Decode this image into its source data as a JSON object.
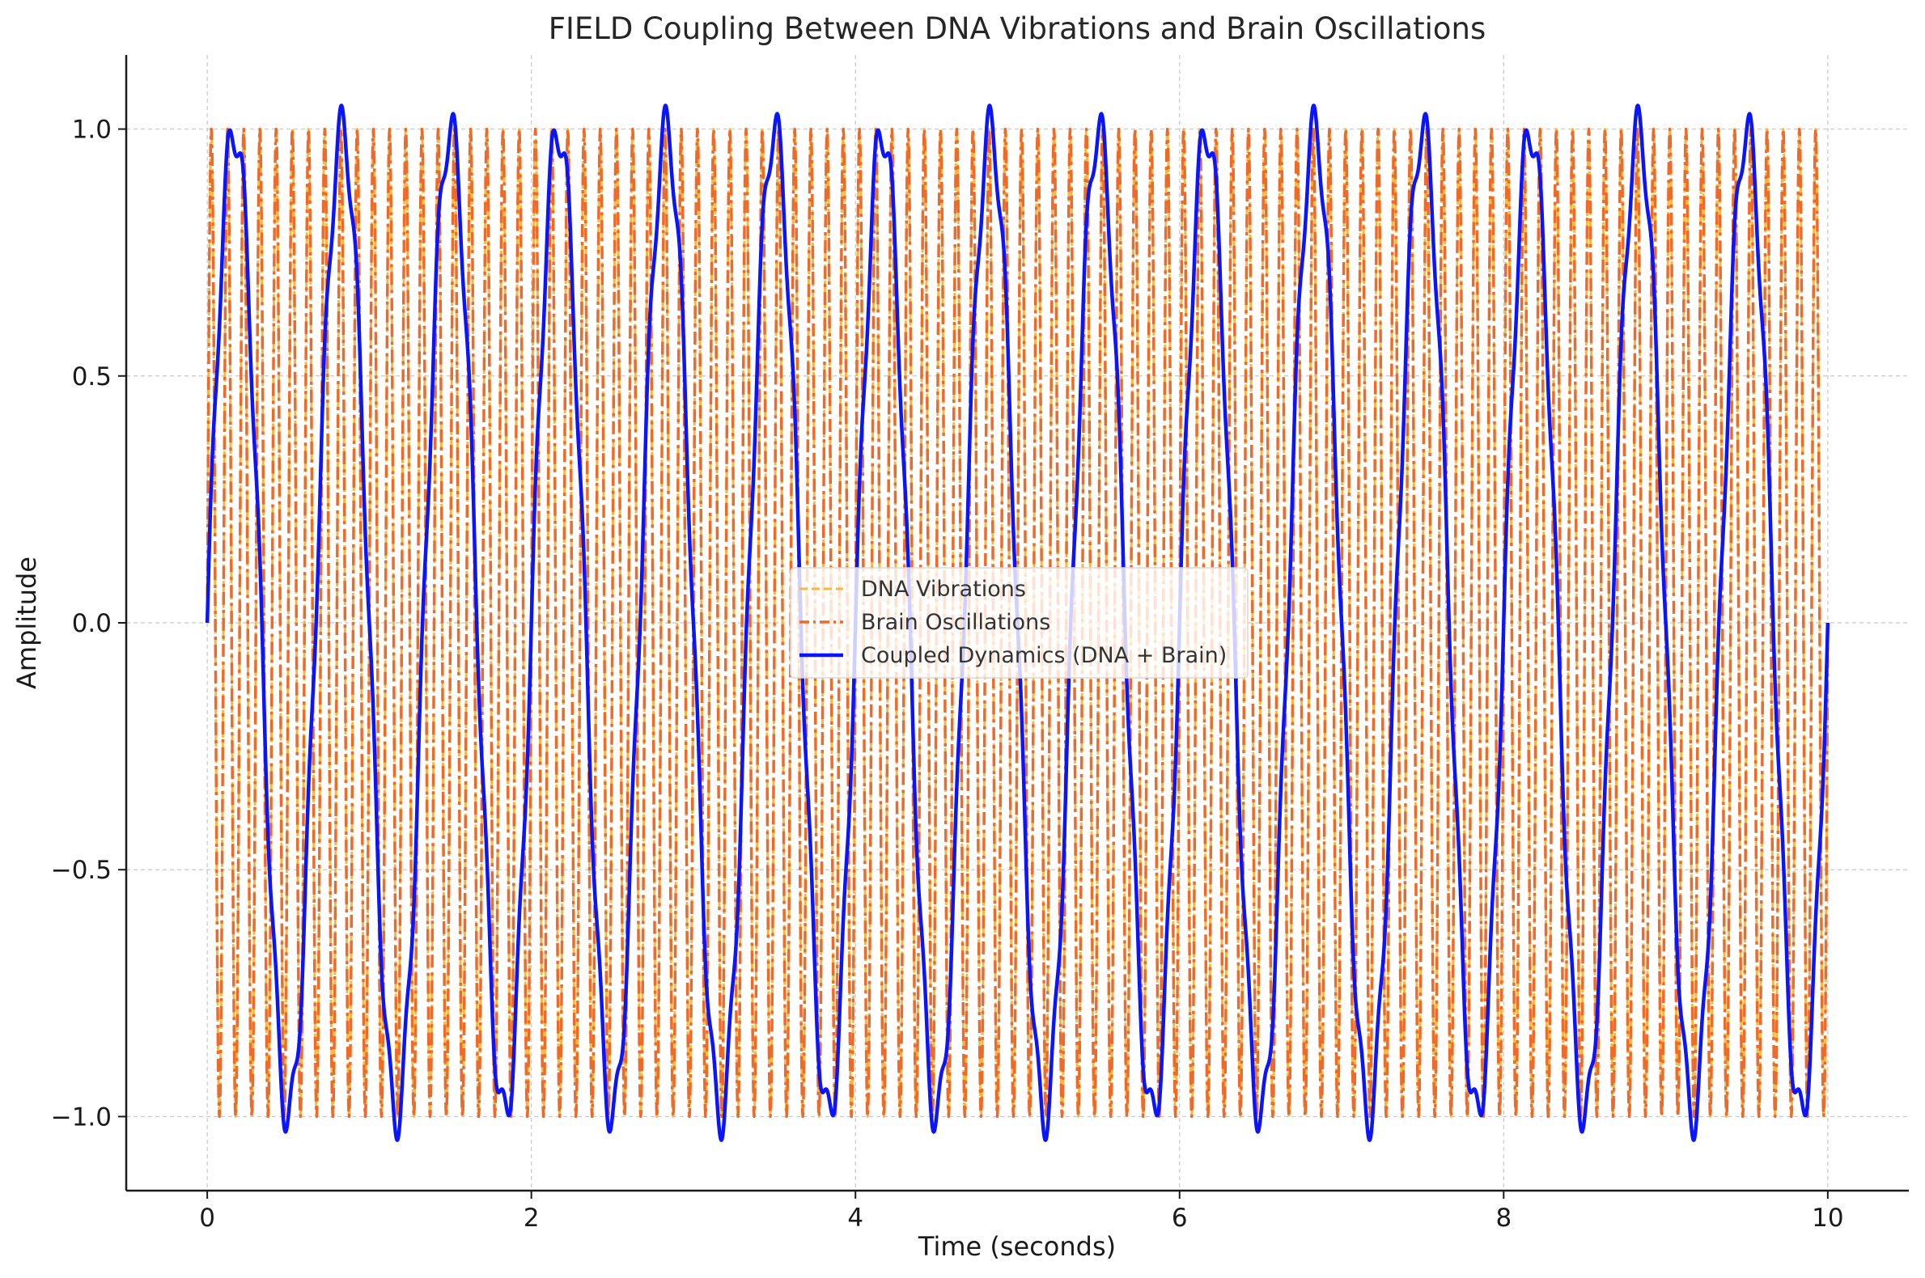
{
  "chart_data": {
    "type": "line",
    "title": "FIELD Coupling Between DNA Vibrations and Brain Oscillations",
    "xlabel": "Time (seconds)",
    "ylabel": "Amplitude",
    "xlim": [
      -0.5,
      10.5
    ],
    "ylim": [
      -1.15,
      1.15
    ],
    "xticks": [
      0,
      2,
      4,
      6,
      8,
      10
    ],
    "xtick_labels": [
      "0",
      "2",
      "4",
      "6",
      "8",
      "10"
    ],
    "yticks": [
      -1.0,
      -0.5,
      0.0,
      0.5,
      1.0
    ],
    "ytick_labels": [
      "−1.0",
      "−0.5",
      "0.0",
      "0.5",
      "1.0"
    ],
    "grid": true,
    "legend_position": "center",
    "series": [
      {
        "name": "DNA Vibrations",
        "color": "#f5b942",
        "linestyle": "dashed",
        "function": "sin(2*pi*10*t)",
        "x_range": [
          0,
          10
        ],
        "amplitude": 1.0,
        "frequency_hz": 10
      },
      {
        "name": "Brain Oscillations",
        "color": "#ee6a28",
        "linestyle": "dashdot",
        "function": "sin(2*pi*10*t)",
        "x_range": [
          0,
          10
        ],
        "amplitude": 1.0,
        "frequency_hz": 10
      },
      {
        "name": "Coupled Dynamics (DNA + Brain)",
        "color": "#0a14ff",
        "linestyle": "solid",
        "function": "sin(2*pi*1.5*t) + 0.05*sin(2*pi*10*t)",
        "x_range": [
          0,
          10
        ],
        "components": [
          {
            "amplitude": 1.0,
            "frequency_hz": 1.5
          },
          {
            "amplitude": 0.05,
            "frequency_hz": 10
          }
        ]
      }
    ]
  }
}
